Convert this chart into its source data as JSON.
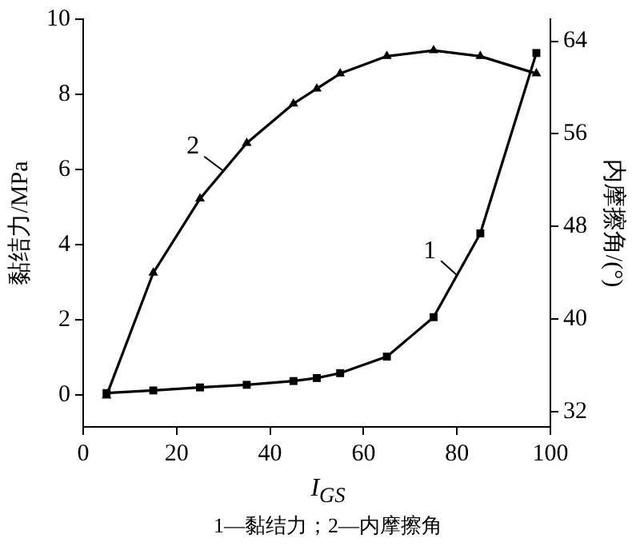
{
  "chart_data": {
    "type": "line",
    "xlabel": "I$_{GS}$",
    "ylabel": "黏结力/MPa",
    "y2label": "内摩擦角/(°)",
    "x": [
      5,
      15,
      25,
      35,
      45,
      50,
      55,
      65,
      75,
      85,
      97
    ],
    "series": [
      {
        "name": "1",
        "color": "#000000",
        "marker": "square",
        "values": [
          0.05,
          0.12,
          0.2,
          0.27,
          0.37,
          0.45,
          0.58,
          1.02,
          2.07,
          4.3,
          9.1
        ]
      },
      {
        "name": "2",
        "color": "#000000",
        "marker": "triangle",
        "axis": "y2",
        "values": [
          33.4,
          44.0,
          50.4,
          55.2,
          58.6,
          59.9,
          61.2,
          62.7,
          63.2,
          62.7,
          61.2
        ]
      }
    ],
    "xlim": [
      0,
      100
    ],
    "xticks": [
      0,
      20,
      40,
      60,
      80,
      100
    ],
    "ylim": [
      -0.85,
      10
    ],
    "yticks": [
      0,
      2,
      4,
      6,
      8,
      10
    ],
    "y2lim": [
      30.7,
      65.9
    ],
    "y2ticks": [
      32,
      40,
      48,
      56,
      64
    ],
    "grid": false,
    "legend": "center",
    "annotations": [
      "1—黏结力；2—内摩擦角"
    ]
  }
}
